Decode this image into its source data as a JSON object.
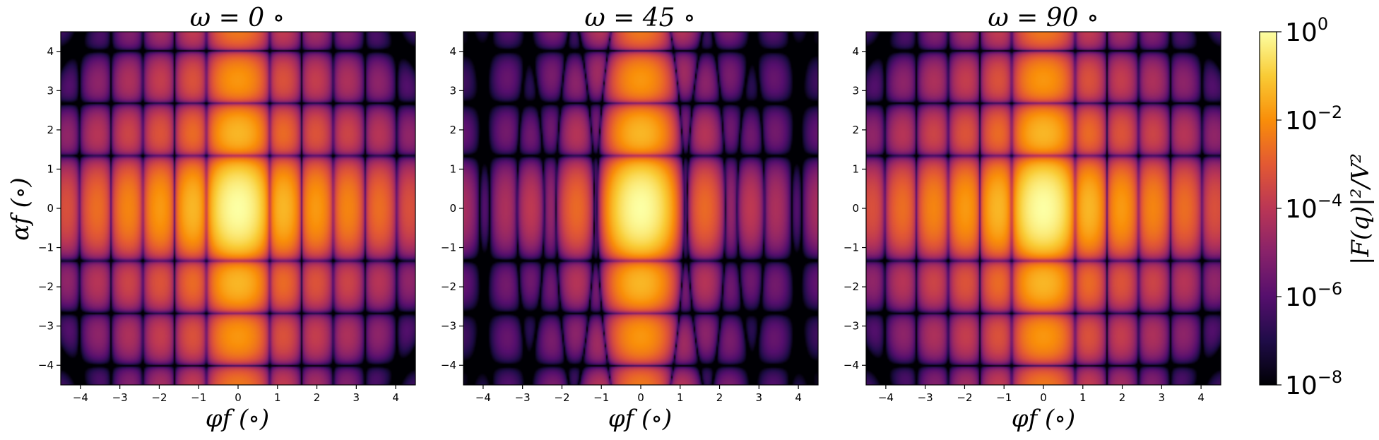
{
  "chart_data": [
    {
      "type": "heatmap",
      "title": "ω = 0 ∘",
      "xlabel": "φf (∘)",
      "ylabel": "αf (∘)",
      "xlim": [
        -4.5,
        4.5
      ],
      "ylim": [
        -4.5,
        4.5
      ],
      "xticks": [
        "−4",
        "−3",
        "−2",
        "−1",
        "0",
        "1",
        "2",
        "3",
        "4"
      ],
      "yticks": [
        "4",
        "3",
        "2",
        "1",
        "0",
        "−1",
        "−2",
        "−3",
        "−4"
      ],
      "omega_deg": 0,
      "colormap": "inferno",
      "scale": "log"
    },
    {
      "type": "heatmap",
      "title": "ω = 45 ∘",
      "xlabel": "φf (∘)",
      "ylabel": "",
      "xlim": [
        -4.5,
        4.5
      ],
      "ylim": [
        -4.5,
        4.5
      ],
      "xticks": [
        "−4",
        "−3",
        "−2",
        "−1",
        "0",
        "1",
        "2",
        "3",
        "4"
      ],
      "yticks": [
        "4",
        "3",
        "2",
        "1",
        "0",
        "−1",
        "−2",
        "−3",
        "−4"
      ],
      "omega_deg": 45,
      "colormap": "inferno",
      "scale": "log"
    },
    {
      "type": "heatmap",
      "title": "ω = 90 ∘",
      "xlabel": "φf (∘)",
      "ylabel": "",
      "xlim": [
        -4.5,
        4.5
      ],
      "ylim": [
        -4.5,
        4.5
      ],
      "xticks": [
        "−4",
        "−3",
        "−2",
        "−1",
        "0",
        "1",
        "2",
        "3",
        "4"
      ],
      "yticks": [
        "4",
        "3",
        "2",
        "1",
        "0",
        "−1",
        "−2",
        "−3",
        "−4"
      ],
      "omega_deg": 90,
      "colormap": "inferno",
      "scale": "log"
    }
  ],
  "colorbar": {
    "label": "|F(q)|²/V²",
    "range": [
      1e-08,
      1
    ],
    "ticks": [
      {
        "base": "10",
        "exp": "0",
        "value": 1
      },
      {
        "base": "10",
        "exp": "−2",
        "value": 0.01
      },
      {
        "base": "10",
        "exp": "−4",
        "value": 0.0001
      },
      {
        "base": "10",
        "exp": "−6",
        "value": 1e-06
      },
      {
        "base": "10",
        "exp": "−8",
        "value": 1e-08
      }
    ],
    "colors": [
      "#000004",
      "#1f0c48",
      "#550f6d",
      "#88226a",
      "#ba3655",
      "#e35933",
      "#f98e09",
      "#f9cb35",
      "#fcffa4"
    ]
  }
}
